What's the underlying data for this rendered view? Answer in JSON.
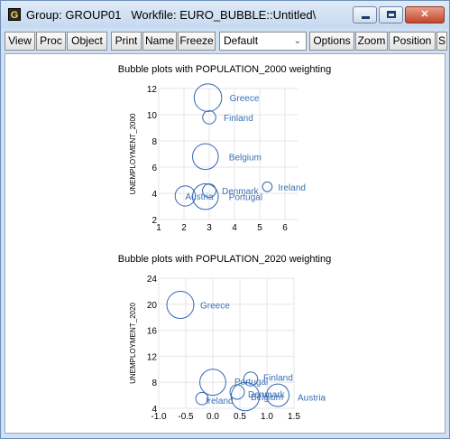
{
  "window": {
    "title": "Group: GROUP01   Workfile: EURO_BUBBLE::Untitled\\",
    "icon_letter": "G",
    "controls": [
      "minimize-icon",
      "maximize-icon",
      "close-icon"
    ]
  },
  "toolbar": {
    "view": "View",
    "proc": "Proc",
    "object": "Object",
    "print": "Print",
    "name": "Name",
    "freeze": "Freeze",
    "style_selected": "Default",
    "options": "Options",
    "zoom": "Zoom",
    "position": "Position",
    "more": "S"
  },
  "colors": {
    "bubble": "#3366b3",
    "label": "#3a6fb5",
    "grid": "#e6e6e6"
  },
  "chart_data": [
    {
      "type": "scatter",
      "subtype": "bubble",
      "title": "Bubble plots with POPULATION_2000 weighting",
      "xlabel": "",
      "ylabel": "UNEMPLOYMENT_2000",
      "xlim": [
        1,
        6.5
      ],
      "ylim": [
        2,
        12
      ],
      "xticks": [
        1,
        2,
        3,
        4,
        5,
        6
      ],
      "yticks": [
        2,
        4,
        6,
        8,
        10,
        12
      ],
      "grid": true,
      "points": [
        {
          "label": "Greece",
          "x": 2.95,
          "y": 11.3,
          "size": 10.9
        },
        {
          "label": "Finland",
          "x": 3.0,
          "y": 9.8,
          "size": 5.2
        },
        {
          "label": "Belgium",
          "x": 2.85,
          "y": 6.8,
          "size": 10.2
        },
        {
          "label": "Ireland",
          "x": 5.3,
          "y": 4.5,
          "size": 3.8
        },
        {
          "label": "Denmark",
          "x": 3.0,
          "y": 4.2,
          "size": 5.3
        },
        {
          "label": "Austria",
          "x": 2.05,
          "y": 3.8,
          "size": 8.0
        },
        {
          "label": "Portugal",
          "x": 2.85,
          "y": 3.75,
          "size": 10.2
        }
      ]
    },
    {
      "type": "scatter",
      "subtype": "bubble",
      "title": "Bubble plots with POPULATION_2020 weighting",
      "xlabel": "",
      "ylabel": "UNEMPLOYMENT_2020",
      "xlim": [
        -1.0,
        1.5
      ],
      "ylim": [
        4,
        24
      ],
      "xticks": [
        -1.0,
        -0.5,
        0.0,
        0.5,
        1.0,
        1.5
      ],
      "yticks": [
        4,
        8,
        12,
        16,
        20,
        24
      ],
      "grid": true,
      "points": [
        {
          "label": "Greece",
          "x": -0.6,
          "y": 19.9,
          "size": 10.7
        },
        {
          "label": "Portugal",
          "x": 0.0,
          "y": 8.0,
          "size": 10.3
        },
        {
          "label": "Finland",
          "x": 0.7,
          "y": 8.5,
          "size": 5.5
        },
        {
          "label": "Ireland",
          "x": -0.2,
          "y": 5.5,
          "size": 4.9
        },
        {
          "label": "Denmark",
          "x": 0.45,
          "y": 6.5,
          "size": 5.7
        },
        {
          "label": "Belgium",
          "x": 0.6,
          "y": 5.8,
          "size": 11.2
        },
        {
          "label": "Austria",
          "x": 1.2,
          "y": 6.0,
          "size": 8.9
        }
      ]
    }
  ]
}
